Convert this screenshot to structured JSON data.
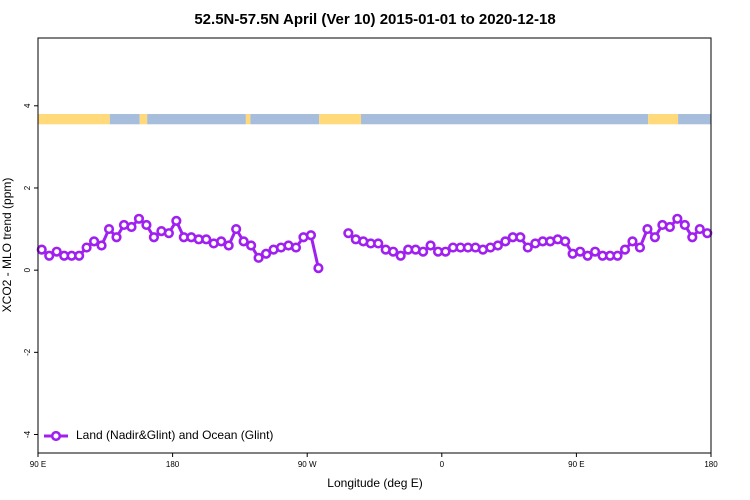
{
  "chart_data": {
    "type": "line",
    "title": "52.5N-57.5N April (Ver 10)   2015-01-01 to 2020-12-18",
    "x_label": "Longitude (deg E)",
    "y_label": "XCO2 - MLO trend (ppm)",
    "xlim": [
      90,
      540
    ],
    "xticks": [
      {
        "value": 90,
        "label": "90 E"
      },
      {
        "value": 180,
        "label": "180"
      },
      {
        "value": 270,
        "label": "90 W"
      },
      {
        "value": 360,
        "label": "0"
      },
      {
        "value": 450,
        "label": "90 E"
      },
      {
        "value": 540,
        "label": "180"
      }
    ],
    "ylim": [
      -4.45,
      5.65
    ],
    "yticks": [
      -4,
      -2,
      0,
      2,
      4
    ],
    "legend": "bottom-left",
    "band": {
      "ylim": [
        3.55,
        3.8
      ],
      "segments": [
        {
          "from": 90,
          "to": 138,
          "color": "#ffd97a"
        },
        {
          "from": 138,
          "to": 158,
          "color": "#a6bddb"
        },
        {
          "from": 158,
          "to": 163,
          "color": "#ffd97a"
        },
        {
          "from": 163,
          "to": 229,
          "color": "#a6bddb"
        },
        {
          "from": 229,
          "to": 232,
          "color": "#ffd97a"
        },
        {
          "from": 232,
          "to": 278,
          "color": "#a6bddb"
        },
        {
          "from": 278,
          "to": 306,
          "color": "#ffd97a"
        },
        {
          "from": 306,
          "to": 498,
          "color": "#a6bddb"
        },
        {
          "from": 498,
          "to": 518,
          "color": "#ffd97a"
        },
        {
          "from": 518,
          "to": 540,
          "color": "#a6bddb"
        }
      ]
    },
    "x": [
      92.5,
      97.5,
      102.5,
      107.5,
      112.5,
      117.5,
      122.5,
      127.5,
      132.5,
      137.5,
      142.5,
      147.5,
      152.5,
      157.5,
      162.5,
      167.5,
      172.5,
      177.5,
      182.5,
      187.5,
      192.5,
      197.5,
      202.5,
      207.5,
      212.5,
      217.5,
      222.5,
      227.5,
      232.5,
      237.5,
      242.5,
      247.5,
      252.5,
      257.5,
      262.5,
      267.5,
      272.5,
      277.5,
      282.5,
      287.5,
      292.5,
      297.5,
      302.5,
      307.5,
      312.5,
      317.5,
      322.5,
      327.5,
      332.5,
      337.5,
      342.5,
      347.5,
      352.5,
      357.5,
      362.5,
      367.5,
      372.5,
      377.5,
      382.5,
      387.5,
      392.5,
      397.5,
      402.5,
      407.5,
      412.5,
      417.5,
      422.5,
      427.5,
      432.5,
      437.5,
      442.5,
      447.5,
      452.5,
      457.5,
      462.5,
      467.5,
      472.5,
      477.5,
      482.5,
      487.5,
      492.5,
      497.5,
      502.5,
      507.5,
      512.5,
      517.5,
      522.5,
      527.5,
      532.5,
      537.5
    ],
    "series": [
      {
        "name": "Land (Nadir&Glint) and Ocean (Glint)",
        "color": "#a020f0",
        "values": [
          0.5,
          0.35,
          0.45,
          0.35,
          0.35,
          0.35,
          0.55,
          0.7,
          0.6,
          1.0,
          0.8,
          1.1,
          1.05,
          1.25,
          1.1,
          0.8,
          0.95,
          0.9,
          1.2,
          0.8,
          0.8,
          0.75,
          0.75,
          0.65,
          0.7,
          0.6,
          1.0,
          0.7,
          0.6,
          0.3,
          0.4,
          0.5,
          0.55,
          0.6,
          0.55,
          0.8,
          0.85,
          0.05,
          null,
          null,
          null,
          0.9,
          0.75,
          0.7,
          0.65,
          0.65,
          0.5,
          0.45,
          0.35,
          0.5,
          0.5,
          0.45,
          0.6,
          0.45,
          0.45,
          0.55,
          0.55,
          0.55,
          0.55,
          0.5,
          0.55,
          0.6,
          0.7,
          0.8,
          0.8,
          0.55,
          0.65,
          0.7,
          0.7,
          0.75,
          0.7,
          0.4,
          0.45,
          0.35,
          0.45,
          0.35,
          0.35,
          0.35,
          0.5,
          0.7,
          0.55,
          1.0,
          0.8,
          1.1,
          1.05,
          1.25,
          1.1,
          0.8,
          1.0,
          0.9
        ]
      }
    ]
  }
}
